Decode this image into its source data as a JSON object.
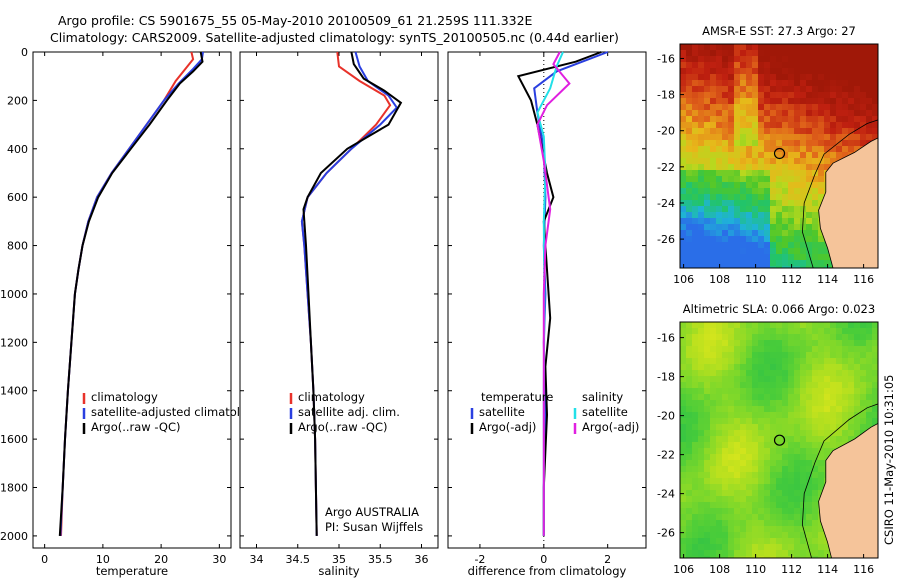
{
  "header": {
    "title_line1": "Argo profile: CS 5901675_55 05-May-2010 20100509_61 21.259S 111.332E",
    "title_line2": "Climatology: CARS2009. Satellite-adjusted climatology: synTS_20100505.nc (0.44d earlier)"
  },
  "side_label": "CSIRO 11-May-2010 10:31:05",
  "colors": {
    "climatology": "#e8322a",
    "satellite": "#2a3fe0",
    "argo": "#000000",
    "salinity_satellite": "#22e0e8",
    "salinity_argo": "#e020e0",
    "land": "#f5c49a"
  },
  "chart_data": [
    {
      "type": "line",
      "panel": "temperature",
      "xlabel": "temperature",
      "ylabel": "",
      "xlim": [
        -2,
        32
      ],
      "ylim": [
        2050,
        0
      ],
      "xticks": [
        "0",
        "10",
        "20",
        "30"
      ],
      "yticks": [
        "0",
        "200",
        "400",
        "600",
        "800",
        "1000",
        "1200",
        "1400",
        "1600",
        "1800",
        "2000"
      ],
      "legend": [
        "climatology",
        "satellite-adjusted climatolog",
        "Argo(..raw -QC)"
      ],
      "series": [
        {
          "name": "climatology",
          "color": "#e8322a",
          "points": [
            [
              25.2,
              0
            ],
            [
              25.5,
              30
            ],
            [
              24.5,
              60
            ],
            [
              22.5,
              120
            ],
            [
              20.5,
              200
            ],
            [
              17.5,
              300
            ],
            [
              14.5,
              400
            ],
            [
              11.5,
              500
            ],
            [
              9,
              600
            ],
            [
              7.5,
              700
            ],
            [
              6.5,
              800
            ],
            [
              5.8,
              900
            ],
            [
              5.2,
              1000
            ],
            [
              4.6,
              1200
            ],
            [
              4,
              1400
            ],
            [
              3.5,
              1600
            ],
            [
              3.1,
              1800
            ],
            [
              2.8,
              2000
            ]
          ]
        },
        {
          "name": "satellite-adjusted climatolog",
          "color": "#2a3fe0",
          "points": [
            [
              27.2,
              0
            ],
            [
              27.0,
              30
            ],
            [
              25.5,
              70
            ],
            [
              23,
              130
            ],
            [
              20.5,
              200
            ],
            [
              17.5,
              300
            ],
            [
              14.5,
              400
            ],
            [
              11.5,
              500
            ],
            [
              9,
              600
            ],
            [
              7.5,
              700
            ],
            [
              6.5,
              800
            ],
            [
              5.8,
              900
            ],
            [
              5.2,
              1000
            ],
            [
              4.6,
              1200
            ],
            [
              4,
              1400
            ],
            [
              3.5,
              1600
            ],
            [
              3.1,
              1800
            ],
            [
              2.7,
              2000
            ]
          ]
        },
        {
          "name": "Argo(..raw -QC)",
          "color": "#000000",
          "points": [
            [
              26.8,
              0
            ],
            [
              27.1,
              40
            ],
            [
              25.5,
              80
            ],
            [
              23.2,
              130
            ],
            [
              21,
              200
            ],
            [
              18,
              300
            ],
            [
              14.8,
              400
            ],
            [
              11.6,
              500
            ],
            [
              9.2,
              600
            ],
            [
              7.6,
              700
            ],
            [
              6.5,
              800
            ],
            [
              5.8,
              900
            ],
            [
              5.2,
              1000
            ],
            [
              4.6,
              1200
            ],
            [
              4,
              1400
            ],
            [
              3.5,
              1600
            ],
            [
              3.1,
              1800
            ],
            [
              2.6,
              2000
            ]
          ]
        }
      ]
    },
    {
      "type": "line",
      "panel": "salinity",
      "xlabel": "salinity",
      "xlim": [
        33.8,
        36.2
      ],
      "ylim": [
        2050,
        0
      ],
      "xticks": [
        "34",
        "34.5",
        "35",
        "35.5",
        "36"
      ],
      "legend": [
        "climatology",
        "satellite adj. clim.",
        "Argo(..raw -QC)"
      ],
      "annotation": [
        "Argo AUSTRALIA",
        "PI: Susan Wijffels"
      ],
      "series": [
        {
          "name": "climatology",
          "color": "#e8322a",
          "points": [
            [
              34.98,
              0
            ],
            [
              35.0,
              60
            ],
            [
              35.25,
              120
            ],
            [
              35.55,
              180
            ],
            [
              35.62,
              220
            ],
            [
              35.45,
              300
            ],
            [
              35.15,
              400
            ],
            [
              34.85,
              500
            ],
            [
              34.62,
              600
            ],
            [
              34.55,
              700
            ],
            [
              34.58,
              800
            ],
            [
              34.62,
              1000
            ],
            [
              34.66,
              1200
            ],
            [
              34.69,
              1400
            ],
            [
              34.71,
              1600
            ],
            [
              34.72,
              1800
            ],
            [
              34.73,
              2000
            ]
          ]
        },
        {
          "name": "satellite adj. clim.",
          "color": "#2a3fe0",
          "points": [
            [
              35.2,
              0
            ],
            [
              35.25,
              60
            ],
            [
              35.35,
              120
            ],
            [
              35.6,
              180
            ],
            [
              35.7,
              230
            ],
            [
              35.5,
              300
            ],
            [
              35.15,
              400
            ],
            [
              34.85,
              500
            ],
            [
              34.62,
              600
            ],
            [
              34.55,
              700
            ],
            [
              34.58,
              800
            ],
            [
              34.62,
              1000
            ],
            [
              34.66,
              1200
            ],
            [
              34.69,
              1400
            ],
            [
              34.71,
              1600
            ],
            [
              34.72,
              1800
            ],
            [
              34.73,
              2000
            ]
          ]
        },
        {
          "name": "Argo(..raw -QC)",
          "color": "#000000",
          "points": [
            [
              35.15,
              0
            ],
            [
              35.18,
              50
            ],
            [
              35.3,
              110
            ],
            [
              35.55,
              160
            ],
            [
              35.75,
              210
            ],
            [
              35.6,
              300
            ],
            [
              35.1,
              400
            ],
            [
              34.78,
              500
            ],
            [
              34.62,
              600
            ],
            [
              34.57,
              650
            ],
            [
              34.6,
              800
            ],
            [
              34.63,
              1000
            ],
            [
              34.66,
              1200
            ],
            [
              34.69,
              1400
            ],
            [
              34.71,
              1600
            ],
            [
              34.72,
              1800
            ],
            [
              34.73,
              2000
            ]
          ]
        }
      ]
    },
    {
      "type": "line",
      "panel": "difference",
      "xlabel": "difference from climatology",
      "xlim": [
        -3,
        3.2
      ],
      "ylim": [
        2050,
        0
      ],
      "xticks": [
        "-2",
        "0",
        "2"
      ],
      "legend_titles": [
        "temperature",
        "salinity"
      ],
      "legend": [
        "satellite",
        "Argo(-adj)",
        "satellite",
        "Argo(-adj)"
      ],
      "series": [
        {
          "name": "temperature satellite",
          "color": "#2a3fe0",
          "points": [
            [
              2.0,
              0
            ],
            [
              1.4,
              30
            ],
            [
              0.4,
              80
            ],
            [
              -0.3,
              150
            ],
            [
              -0.2,
              250
            ],
            [
              0.0,
              400
            ],
            [
              0.05,
              600
            ],
            [
              0.0,
              800
            ],
            [
              0.05,
              1000
            ],
            [
              0.0,
              1200
            ],
            [
              0.05,
              1500
            ],
            [
              0.0,
              1800
            ],
            [
              0.0,
              2000
            ]
          ]
        },
        {
          "name": "temperature Argo(-adj)",
          "color": "#000000",
          "points": [
            [
              1.8,
              0
            ],
            [
              1.0,
              40
            ],
            [
              -0.8,
              100
            ],
            [
              -0.4,
              200
            ],
            [
              -0.2,
              300
            ],
            [
              0.1,
              500
            ],
            [
              0.3,
              600
            ],
            [
              0.0,
              700
            ],
            [
              0.1,
              900
            ],
            [
              0.2,
              1100
            ],
            [
              0.05,
              1300
            ],
            [
              0.1,
              1500
            ],
            [
              0.0,
              1800
            ],
            [
              0.0,
              2000
            ]
          ]
        },
        {
          "name": "salinity satellite",
          "color": "#22e0e8",
          "points": [
            [
              0.6,
              0
            ],
            [
              0.4,
              60
            ],
            [
              0.2,
              150
            ],
            [
              -0.2,
              250
            ],
            [
              0.0,
              350
            ],
            [
              0.05,
              500
            ],
            [
              0.0,
              700
            ],
            [
              0.02,
              1000
            ],
            [
              0.0,
              1400
            ],
            [
              0.0,
              2000
            ]
          ]
        },
        {
          "name": "salinity Argo(-adj)",
          "color": "#e020e0",
          "points": [
            [
              0.5,
              0
            ],
            [
              0.3,
              50
            ],
            [
              0.8,
              130
            ],
            [
              0.1,
              220
            ],
            [
              -0.2,
              300
            ],
            [
              0.0,
              450
            ],
            [
              0.1,
              550
            ],
            [
              0.2,
              650
            ],
            [
              0.05,
              800
            ],
            [
              0.0,
              1000
            ],
            [
              0.0,
              1400
            ],
            [
              0.0,
              2000
            ]
          ]
        }
      ]
    },
    {
      "type": "heatmap",
      "panel": "sst_map",
      "title": "AMSR-E SST: 27.3 Argo: 27",
      "xlim": [
        105.8,
        116.8
      ],
      "ylim": [
        -27.6,
        -15.2
      ],
      "xticks": [
        "106",
        "108",
        "110",
        "112",
        "114",
        "116"
      ],
      "yticks": [
        "-16",
        "-18",
        "-20",
        "-22",
        "-24",
        "-26"
      ],
      "marker": {
        "lon": 111.33,
        "lat": -21.26
      }
    },
    {
      "type": "heatmap",
      "panel": "sla_map",
      "title": "Altimetric SLA: 0.066 Argo: 0.023",
      "xlim": [
        105.8,
        116.8
      ],
      "ylim": [
        -27.3,
        -15.2
      ],
      "xticks": [
        "106",
        "108",
        "110",
        "112",
        "114",
        "116"
      ],
      "yticks": [
        "-16",
        "-18",
        "-20",
        "-22",
        "-24",
        "-26"
      ],
      "marker": {
        "lon": 111.33,
        "lat": -21.26
      }
    }
  ]
}
